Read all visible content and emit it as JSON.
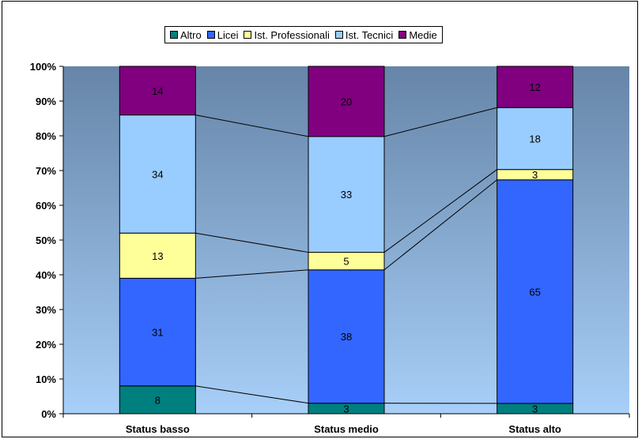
{
  "chart_data": {
    "type": "bar",
    "stacked": true,
    "percent": true,
    "categories": [
      "Status basso",
      "Status medio",
      "Status alto"
    ],
    "series": [
      {
        "name": "Altro",
        "color": "#007F7F",
        "values": [
          8,
          3,
          3
        ]
      },
      {
        "name": "Licei",
        "color": "#3366FF",
        "values": [
          31,
          38,
          65
        ]
      },
      {
        "name": "Ist. Professionali",
        "color": "#FFFF99",
        "values": [
          13,
          5,
          3
        ]
      },
      {
        "name": "Ist. Tecnici",
        "color": "#99CCFF",
        "values": [
          34,
          33,
          18
        ]
      },
      {
        "name": "Medie",
        "color": "#800080",
        "values": [
          14,
          20,
          12
        ]
      }
    ],
    "y_ticks": [
      "0%",
      "10%",
      "20%",
      "30%",
      "40%",
      "50%",
      "60%",
      "70%",
      "80%",
      "90%",
      "100%"
    ],
    "ylim": [
      0,
      100
    ],
    "legend_position": "top",
    "plot_background": {
      "top": "#6685A8",
      "bottom": "#A8CFF8"
    },
    "series_lines": true
  }
}
